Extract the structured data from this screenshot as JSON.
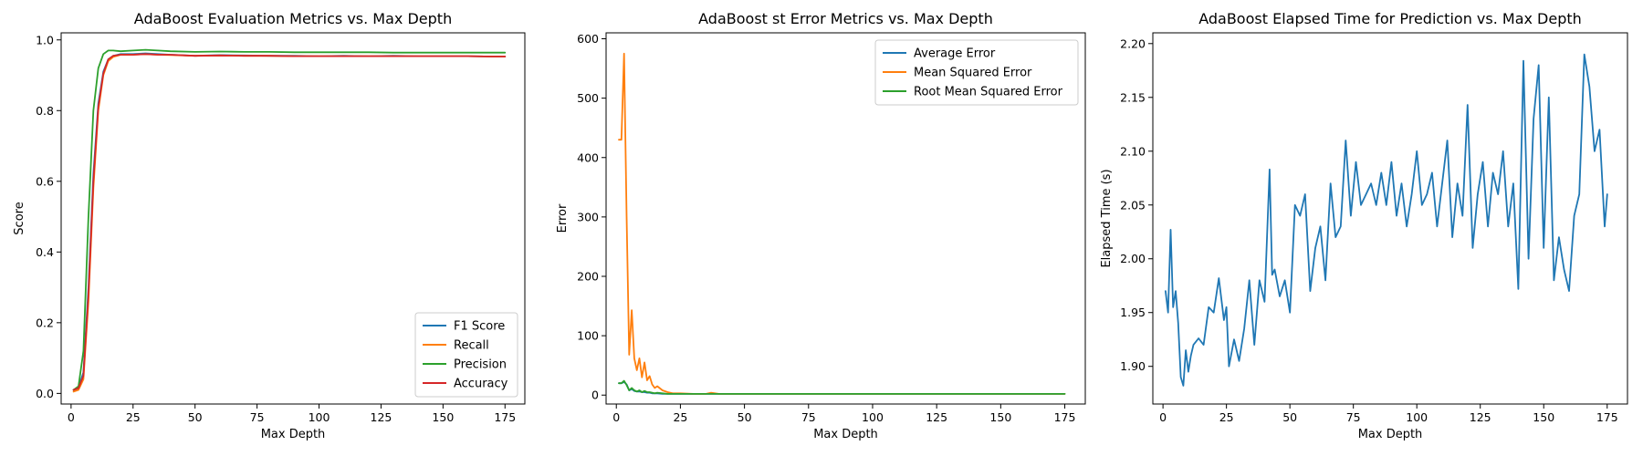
{
  "chart_data": [
    {
      "type": "line",
      "title": "AdaBoost Evaluation Metrics vs. Max Depth",
      "xlabel": "Max Depth",
      "ylabel": "Score",
      "xlim": [
        -4,
        183
      ],
      "ylim": [
        -0.03,
        1.02
      ],
      "xticks": [
        0,
        25,
        50,
        75,
        100,
        125,
        150,
        175
      ],
      "yticks": [
        0.0,
        0.2,
        0.4,
        0.6,
        0.8,
        1.0
      ],
      "ytick_decimals": 1,
      "grid": false,
      "legend": "lower right",
      "x": [
        1,
        3,
        5,
        7,
        9,
        11,
        13,
        15,
        17,
        20,
        25,
        30,
        35,
        40,
        50,
        60,
        70,
        80,
        90,
        100,
        110,
        120,
        130,
        140,
        150,
        160,
        170,
        175
      ],
      "series": [
        {
          "name": "F1 Score",
          "color": "#1f77b4",
          "values": [
            0.01,
            0.015,
            0.06,
            0.3,
            0.62,
            0.82,
            0.91,
            0.945,
            0.955,
            0.96,
            0.96,
            0.962,
            0.96,
            0.958,
            0.955,
            0.957,
            0.956,
            0.955,
            0.955,
            0.954,
            0.955,
            0.954,
            0.955,
            0.954,
            0.954,
            0.954,
            0.953,
            0.953
          ]
        },
        {
          "name": "Recall",
          "color": "#ff7f0e",
          "values": [
            0.005,
            0.01,
            0.04,
            0.26,
            0.58,
            0.8,
            0.9,
            0.94,
            0.952,
            0.958,
            0.958,
            0.96,
            0.958,
            0.957,
            0.955,
            0.956,
            0.955,
            0.955,
            0.954,
            0.954,
            0.954,
            0.954,
            0.954,
            0.954,
            0.954,
            0.954,
            0.953,
            0.953
          ]
        },
        {
          "name": "Precision",
          "color": "#2ca02c",
          "values": [
            0.01,
            0.02,
            0.12,
            0.5,
            0.8,
            0.92,
            0.96,
            0.97,
            0.97,
            0.968,
            0.97,
            0.972,
            0.97,
            0.968,
            0.966,
            0.967,
            0.966,
            0.966,
            0.965,
            0.965,
            0.965,
            0.965,
            0.964,
            0.964,
            0.964,
            0.964,
            0.964,
            0.964
          ]
        },
        {
          "name": "Accuracy",
          "color": "#d62728",
          "values": [
            0.01,
            0.015,
            0.05,
            0.28,
            0.6,
            0.81,
            0.905,
            0.945,
            0.955,
            0.958,
            0.958,
            0.96,
            0.958,
            0.958,
            0.955,
            0.956,
            0.955,
            0.955,
            0.954,
            0.954,
            0.954,
            0.954,
            0.954,
            0.954,
            0.954,
            0.954,
            0.953,
            0.953
          ]
        }
      ]
    },
    {
      "type": "line",
      "title": "AdaBoost st Error Metrics vs. Max Depth",
      "xlabel": "Max Depth",
      "ylabel": "Error",
      "xlim": [
        -4,
        183
      ],
      "ylim": [
        -15,
        610
      ],
      "xticks": [
        0,
        25,
        50,
        75,
        100,
        125,
        150,
        175
      ],
      "yticks": [
        0,
        100,
        200,
        300,
        400,
        500,
        600
      ],
      "ytick_decimals": 0,
      "grid": false,
      "legend": "upper right",
      "x": [
        1,
        2,
        3,
        4,
        5,
        6,
        7,
        8,
        9,
        10,
        11,
        12,
        13,
        14,
        15,
        16,
        18,
        20,
        22,
        25,
        30,
        35,
        37,
        40,
        50,
        60,
        80,
        100,
        125,
        150,
        175
      ],
      "series": [
        {
          "name": "Average Error",
          "color": "#1f77b4",
          "values": [
            20,
            20,
            22,
            18,
            8,
            10,
            7,
            6,
            6,
            5,
            5,
            4,
            4,
            3,
            3,
            3,
            2,
            2,
            2,
            2,
            2,
            2,
            2,
            2,
            2,
            2,
            2,
            2,
            2,
            2,
            2
          ]
        },
        {
          "name": "Mean Squared Error",
          "color": "#ff7f0e",
          "values": [
            430,
            430,
            575,
            300,
            68,
            143,
            62,
            42,
            62,
            30,
            55,
            25,
            32,
            18,
            12,
            15,
            8,
            5,
            3,
            3,
            2,
            2,
            4,
            2,
            2,
            2,
            2,
            2,
            2,
            2,
            2
          ]
        },
        {
          "name": "Root Mean Squared Error",
          "color": "#2ca02c",
          "values": [
            20,
            20,
            24,
            17,
            8,
            12,
            8,
            6,
            8,
            5,
            7,
            5,
            5,
            4,
            3,
            4,
            3,
            2,
            2,
            2,
            2,
            2,
            2,
            2,
            2,
            2,
            2,
            2,
            2,
            2,
            2
          ]
        }
      ]
    },
    {
      "type": "line",
      "title": "AdaBoost Elapsed Time for Prediction vs. Max Depth",
      "xlabel": "Max Depth",
      "ylabel": "Elapsed Time (s)",
      "xlim": [
        -4,
        183
      ],
      "ylim": [
        1.865,
        2.21
      ],
      "xticks": [
        0,
        25,
        50,
        75,
        100,
        125,
        150,
        175
      ],
      "yticks": [
        1.9,
        1.95,
        2.0,
        2.05,
        2.1,
        2.15,
        2.2
      ],
      "ytick_decimals": 2,
      "grid": false,
      "legend": "none",
      "x": [
        1,
        2,
        3,
        4,
        5,
        6,
        7,
        8,
        9,
        10,
        11,
        12,
        14,
        16,
        18,
        20,
        22,
        24,
        25,
        26,
        28,
        30,
        32,
        34,
        36,
        38,
        40,
        42,
        43,
        44,
        46,
        48,
        50,
        52,
        54,
        56,
        58,
        60,
        62,
        64,
        66,
        68,
        70,
        72,
        74,
        76,
        78,
        80,
        82,
        84,
        86,
        88,
        90,
        92,
        94,
        96,
        98,
        100,
        102,
        104,
        106,
        108,
        110,
        112,
        114,
        116,
        118,
        120,
        122,
        124,
        126,
        128,
        130,
        132,
        134,
        136,
        138,
        140,
        142,
        144,
        146,
        148,
        150,
        152,
        154,
        156,
        158,
        160,
        162,
        164,
        166,
        168,
        170,
        172,
        174,
        175
      ],
      "series": [
        {
          "name": "Elapsed Time",
          "color": "#1f77b4",
          "values": [
            1.97,
            1.95,
            2.027,
            1.955,
            1.97,
            1.94,
            1.89,
            1.882,
            1.915,
            1.895,
            1.91,
            1.92,
            1.926,
            1.92,
            1.955,
            1.95,
            1.982,
            1.943,
            1.955,
            1.9,
            1.925,
            1.905,
            1.935,
            1.98,
            1.92,
            1.98,
            1.96,
            2.083,
            1.985,
            1.99,
            1.965,
            1.98,
            1.95,
            2.05,
            2.04,
            2.06,
            1.97,
            2.01,
            2.03,
            1.98,
            2.07,
            2.02,
            2.03,
            2.11,
            2.04,
            2.09,
            2.05,
            2.06,
            2.07,
            2.05,
            2.08,
            2.05,
            2.09,
            2.04,
            2.07,
            2.03,
            2.06,
            2.1,
            2.05,
            2.06,
            2.08,
            2.03,
            2.07,
            2.11,
            2.02,
            2.07,
            2.04,
            2.143,
            2.01,
            2.06,
            2.09,
            2.03,
            2.08,
            2.06,
            2.1,
            2.03,
            2.07,
            1.972,
            2.184,
            2.0,
            2.13,
            2.18,
            2.01,
            2.15,
            1.98,
            2.02,
            1.99,
            1.97,
            2.04,
            2.06,
            2.19,
            2.16,
            2.1,
            2.12,
            2.03,
            2.06
          ]
        }
      ]
    }
  ]
}
